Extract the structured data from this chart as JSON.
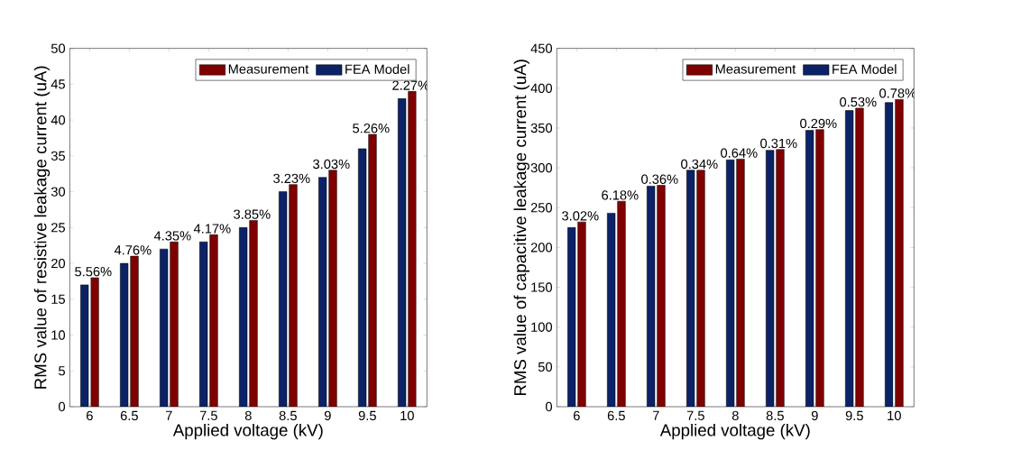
{
  "chart_data": [
    {
      "type": "bar",
      "xlabel": "Applied voltage (kV)",
      "ylabel": "RMS value of resistive leakage current (uA)",
      "categories": [
        "6",
        "6.5",
        "7",
        "7.5",
        "8",
        "8.5",
        "9",
        "9.5",
        "10"
      ],
      "series": [
        {
          "name": "FEA Model",
          "color": "#0b2266",
          "values": [
            17,
            20,
            22,
            23,
            25,
            30,
            32,
            36,
            43
          ]
        },
        {
          "name": "Measurement",
          "color": "#800000",
          "values": [
            18,
            21,
            23,
            24,
            26,
            31,
            33,
            38,
            44
          ]
        }
      ],
      "ylim": [
        0,
        50
      ],
      "yticks": [
        0,
        5,
        10,
        15,
        20,
        25,
        30,
        35,
        40,
        45,
        50
      ],
      "legend": "top right",
      "grid": false,
      "annotations": [
        {
          "text": "5.56%",
          "x": "6",
          "y": 18
        },
        {
          "text": "4.76%",
          "x": "6.5",
          "y": 21
        },
        {
          "text": "4.35%",
          "x": "7",
          "y": 23
        },
        {
          "text": "4.17%",
          "x": "7.5",
          "y": 24
        },
        {
          "text": "3.85%",
          "x": "8",
          "y": 26
        },
        {
          "text": "3.23%",
          "x": "8.5",
          "y": 31
        },
        {
          "text": "3.03%",
          "x": "9",
          "y": 33
        },
        {
          "text": "5.26%",
          "x": "9.5",
          "y": 38
        },
        {
          "text": "2.27%",
          "x": "10",
          "y": 44
        }
      ]
    },
    {
      "type": "bar",
      "xlabel": "Applied voltage (kV)",
      "ylabel": "RMS value of capacitive leakage current (uA)",
      "categories": [
        "6",
        "6.5",
        "7",
        "7.5",
        "8",
        "8.5",
        "9",
        "9.5",
        "10"
      ],
      "series": [
        {
          "name": "FEA Model",
          "color": "#0b2266",
          "values": [
            225,
            243,
            277,
            297,
            310,
            322,
            347,
            372,
            382
          ]
        },
        {
          "name": "Measurement",
          "color": "#800000",
          "values": [
            232,
            258,
            278,
            297,
            311,
            323,
            348,
            375,
            386
          ]
        }
      ],
      "ylim": [
        0,
        450
      ],
      "yticks": [
        0,
        50,
        100,
        150,
        200,
        250,
        300,
        350,
        400,
        450
      ],
      "legend": "top right",
      "grid": false,
      "annotations": [
        {
          "text": "3.02%",
          "x": "6",
          "y": 232
        },
        {
          "text": "6.18%",
          "x": "6.5",
          "y": 258
        },
        {
          "text": "0.36%",
          "x": "7",
          "y": 278
        },
        {
          "text": "0.34%",
          "x": "7.5",
          "y": 297
        },
        {
          "text": "0.64%",
          "x": "8",
          "y": 311
        },
        {
          "text": "0.31%",
          "x": "8.5",
          "y": 323
        },
        {
          "text": "0.29%",
          "x": "9",
          "y": 348
        },
        {
          "text": "0.53%",
          "x": "9.5",
          "y": 375
        },
        {
          "text": "0.78%",
          "x": "10",
          "y": 386
        }
      ]
    }
  ]
}
